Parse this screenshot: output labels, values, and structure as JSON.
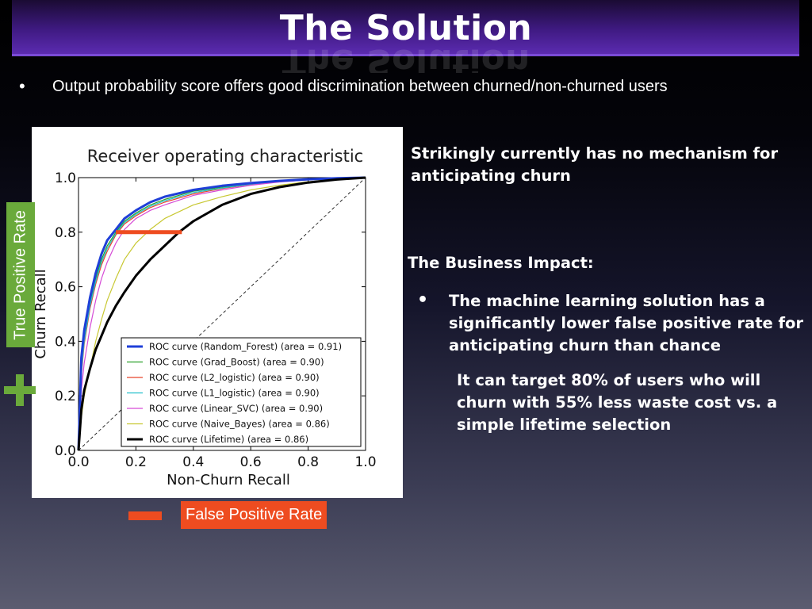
{
  "slide": {
    "title": "The Solution",
    "bullet": "Output probability score offers good discrimination between churned/non-churned users",
    "bullet_marker": "•"
  },
  "labels": {
    "true_positive_rate": "True Positive Rate",
    "false_positive_rate": "False Positive Rate"
  },
  "right_panel": {
    "striking": "Strikingly currently has no mechanism for anticipating churn",
    "impact_heading": "The Business Impact:",
    "impact_marker": "•",
    "impact_bullet": "The machine learning solution has a significantly lower false positive rate for anticipating churn than chance",
    "target_text": "It can target 80% of users who will churn with 55% less waste cost vs. a simple lifetime selection"
  },
  "colors": {
    "accent_green": "#6aaa3b",
    "accent_orange": "#ee4c20",
    "title_purple": "#4a1f96"
  },
  "icons": {
    "plus": "plus-icon",
    "minus": "minus-icon"
  },
  "chart_data": {
    "type": "line",
    "title": "Receiver operating characteristic",
    "xlabel": "Non-Churn Recall",
    "ylabel": "Churn Recall",
    "xlim": [
      0,
      1
    ],
    "ylim": [
      0,
      1
    ],
    "xticks": [
      "0.0",
      "0.2",
      "0.4",
      "0.6",
      "0.8",
      "1.0"
    ],
    "yticks": [
      "0.0",
      "0.2",
      "0.4",
      "0.6",
      "0.8",
      "1.0"
    ],
    "legend_position": "lower-right",
    "chance_line": {
      "x": [
        0,
        1
      ],
      "y": [
        0,
        1
      ],
      "style": "dashed"
    },
    "highlight": {
      "x": [
        0.13,
        0.36
      ],
      "y": [
        0.8,
        0.8
      ],
      "color": "#ee4c20"
    },
    "series": [
      {
        "name": "ROC curve (Random_Forest) (area = 0.91)",
        "color": "#1f3fd8",
        "width": 3,
        "x": [
          0,
          0.01,
          0.02,
          0.04,
          0.06,
          0.08,
          0.1,
          0.13,
          0.16,
          0.2,
          0.25,
          0.3,
          0.4,
          0.5,
          0.6,
          0.7,
          0.8,
          0.9,
          1.0
        ],
        "y": [
          0,
          0.34,
          0.44,
          0.56,
          0.65,
          0.72,
          0.77,
          0.81,
          0.85,
          0.88,
          0.91,
          0.93,
          0.955,
          0.97,
          0.98,
          0.988,
          0.994,
          0.998,
          1.0
        ]
      },
      {
        "name": "ROC curve (Grad_Boost) (area = 0.90)",
        "color": "#2aa02a",
        "width": 1.2,
        "x": [
          0,
          0.01,
          0.02,
          0.04,
          0.06,
          0.08,
          0.1,
          0.13,
          0.16,
          0.2,
          0.25,
          0.3,
          0.4,
          0.5,
          0.6,
          0.7,
          0.8,
          0.9,
          1.0
        ],
        "y": [
          0,
          0.3,
          0.41,
          0.54,
          0.63,
          0.7,
          0.75,
          0.8,
          0.84,
          0.87,
          0.9,
          0.92,
          0.95,
          0.965,
          0.978,
          0.986,
          0.993,
          0.998,
          1.0
        ]
      },
      {
        "name": "ROC curve (L2_logistic) (area = 0.90)",
        "color": "#e8432b",
        "width": 1.2,
        "x": [
          0,
          0.01,
          0.02,
          0.04,
          0.06,
          0.08,
          0.1,
          0.13,
          0.16,
          0.2,
          0.25,
          0.3,
          0.4,
          0.5,
          0.6,
          0.7,
          0.8,
          0.9,
          1.0
        ],
        "y": [
          0,
          0.28,
          0.39,
          0.52,
          0.61,
          0.68,
          0.73,
          0.79,
          0.83,
          0.86,
          0.89,
          0.91,
          0.94,
          0.96,
          0.975,
          0.985,
          0.992,
          0.997,
          1.0
        ]
      },
      {
        "name": "ROC curve (L1_logistic) (area = 0.90)",
        "color": "#22c0cc",
        "width": 1.2,
        "x": [
          0,
          0.01,
          0.02,
          0.04,
          0.06,
          0.08,
          0.1,
          0.13,
          0.16,
          0.2,
          0.25,
          0.3,
          0.4,
          0.5,
          0.6,
          0.7,
          0.8,
          0.9,
          1.0
        ],
        "y": [
          0,
          0.29,
          0.4,
          0.53,
          0.62,
          0.69,
          0.74,
          0.795,
          0.835,
          0.865,
          0.895,
          0.915,
          0.945,
          0.962,
          0.976,
          0.986,
          0.993,
          0.998,
          1.0
        ]
      },
      {
        "name": "ROC curve (Linear_SVC) (area = 0.90)",
        "color": "#d64bd6",
        "width": 1.2,
        "x": [
          0,
          0.01,
          0.02,
          0.04,
          0.06,
          0.08,
          0.1,
          0.13,
          0.16,
          0.2,
          0.25,
          0.3,
          0.4,
          0.5,
          0.6,
          0.7,
          0.8,
          0.9,
          1.0
        ],
        "y": [
          0,
          0.22,
          0.32,
          0.45,
          0.55,
          0.63,
          0.69,
          0.76,
          0.81,
          0.85,
          0.88,
          0.9,
          0.935,
          0.955,
          0.972,
          0.984,
          0.992,
          0.997,
          1.0
        ]
      },
      {
        "name": "ROC curve (Naive_Bayes) (area = 0.86)",
        "color": "#c8c832",
        "width": 1.2,
        "x": [
          0,
          0.01,
          0.02,
          0.04,
          0.06,
          0.08,
          0.1,
          0.13,
          0.16,
          0.2,
          0.25,
          0.3,
          0.4,
          0.5,
          0.6,
          0.7,
          0.8,
          0.9,
          1.0
        ],
        "y": [
          0,
          0.12,
          0.2,
          0.3,
          0.4,
          0.48,
          0.55,
          0.63,
          0.7,
          0.76,
          0.81,
          0.85,
          0.9,
          0.93,
          0.955,
          0.972,
          0.985,
          0.995,
          1.0
        ]
      },
      {
        "name": "ROC curve (Lifetime) (area = 0.86)",
        "color": "#000000",
        "width": 3,
        "x": [
          0,
          0.01,
          0.02,
          0.04,
          0.06,
          0.08,
          0.1,
          0.13,
          0.16,
          0.2,
          0.25,
          0.3,
          0.35,
          0.4,
          0.5,
          0.6,
          0.7,
          0.8,
          0.9,
          1.0
        ],
        "y": [
          0,
          0.15,
          0.22,
          0.3,
          0.37,
          0.42,
          0.47,
          0.53,
          0.58,
          0.64,
          0.7,
          0.75,
          0.8,
          0.84,
          0.9,
          0.94,
          0.965,
          0.982,
          0.993,
          1.0
        ]
      }
    ]
  }
}
